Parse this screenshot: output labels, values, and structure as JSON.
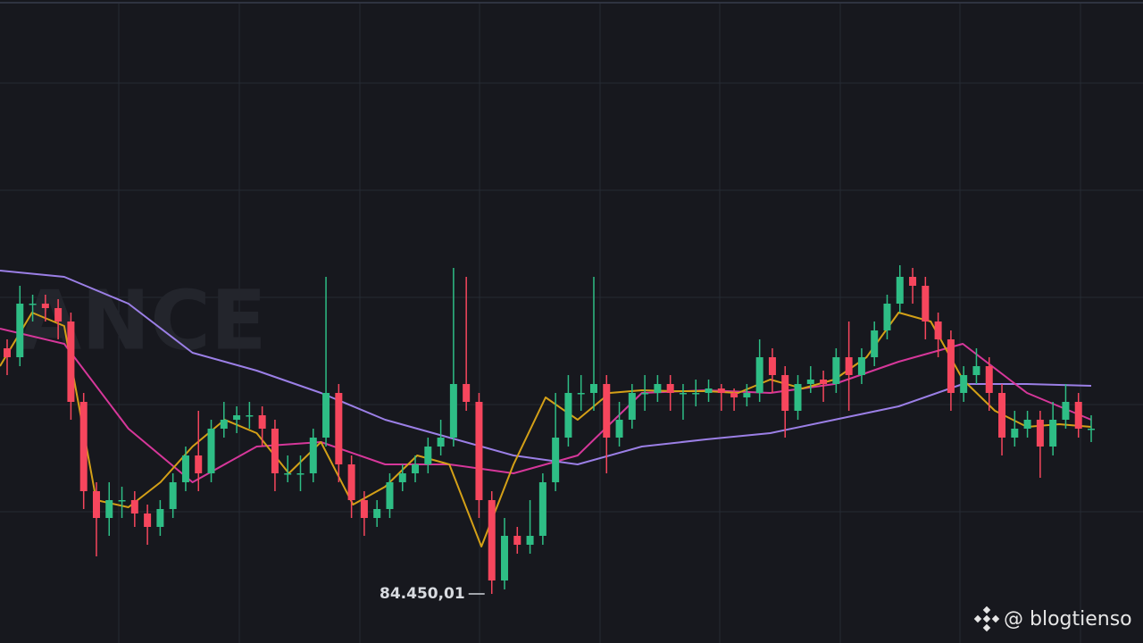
{
  "chart_data": {
    "type": "candlestick",
    "open": [
      87200,
      87100,
      87700,
      87700,
      87650,
      87500,
      86600,
      85600,
      85300,
      85500,
      85500,
      85350,
      85200,
      85400,
      85700,
      86000,
      85800,
      86300,
      86400,
      86450,
      86450,
      86300,
      85800,
      85800,
      85800,
      86200,
      86700,
      85900,
      85500,
      85300,
      85400,
      85700,
      85800,
      85900,
      86100,
      86200,
      86800,
      86600,
      85500,
      84600,
      85100,
      85000,
      85100,
      85700,
      86200,
      86700,
      86700,
      86800,
      86200,
      86400,
      86700,
      86700,
      86800,
      86700,
      86700,
      86700,
      86750,
      86700,
      86650,
      86700,
      87100,
      86900,
      86500,
      86800,
      86850,
      86800,
      87100,
      86900,
      87100,
      87400,
      87700,
      88000,
      87900,
      87500,
      87300,
      86700,
      86900,
      87000,
      86700,
      86200,
      86300,
      86400,
      86100,
      86400,
      86600,
      86300
    ],
    "high": [
      87300,
      87900,
      87800,
      87800,
      87750,
      87600,
      86700,
      85700,
      85700,
      85650,
      85600,
      85450,
      85500,
      85800,
      86100,
      86500,
      86400,
      86600,
      86550,
      86600,
      86550,
      86400,
      86000,
      86000,
      86300,
      88000,
      86800,
      86000,
      85600,
      85500,
      85800,
      85900,
      86000,
      86200,
      86400,
      88100,
      88000,
      86700,
      85600,
      85300,
      85200,
      85500,
      85800,
      86700,
      86900,
      86900,
      88000,
      86900,
      86600,
      86800,
      86900,
      86900,
      86900,
      86800,
      86850,
      86850,
      86800,
      86750,
      86800,
      87300,
      87200,
      87000,
      86900,
      87000,
      86950,
      87200,
      87500,
      87200,
      87500,
      87800,
      88130,
      88100,
      88000,
      87600,
      87400,
      87000,
      87200,
      87100,
      86800,
      86500,
      86500,
      86500,
      86600,
      86800,
      86700,
      86450
    ],
    "low": [
      86900,
      87000,
      87500,
      87500,
      87300,
      86400,
      85400,
      84870,
      85100,
      85300,
      85200,
      85000,
      85100,
      85300,
      85600,
      85600,
      85700,
      86200,
      86250,
      86300,
      86100,
      85600,
      85700,
      85600,
      85700,
      86100,
      85700,
      85300,
      85100,
      85200,
      85300,
      85600,
      85700,
      85800,
      86000,
      86100,
      86500,
      85300,
      84450.01,
      84500,
      84900,
      84900,
      85000,
      85600,
      86100,
      86500,
      86500,
      85800,
      86100,
      86300,
      86500,
      86600,
      86500,
      86400,
      86550,
      86600,
      86500,
      86500,
      86550,
      86600,
      86700,
      86200,
      86400,
      86700,
      86600,
      86700,
      86500,
      86800,
      87000,
      87300,
      87600,
      87700,
      87300,
      87100,
      86500,
      86600,
      86800,
      86500,
      86000,
      86100,
      86200,
      85750,
      86000,
      86300,
      86200,
      86150
    ],
    "close": [
      87100,
      87700,
      87700,
      87650,
      87500,
      86600,
      85600,
      85300,
      85500,
      85500,
      85350,
      85200,
      85400,
      85700,
      86000,
      85800,
      86300,
      86400,
      86450,
      86450,
      86300,
      85800,
      85800,
      85800,
      86200,
      86700,
      85900,
      85500,
      85300,
      85400,
      85700,
      85800,
      85900,
      86100,
      86200,
      86800,
      86600,
      85500,
      84600,
      85100,
      85000,
      85100,
      85700,
      86200,
      86700,
      86700,
      86800,
      86200,
      86400,
      86700,
      86700,
      86800,
      86700,
      86700,
      86700,
      86750,
      86700,
      86650,
      86700,
      87100,
      86900,
      86500,
      86800,
      86850,
      86800,
      87100,
      86900,
      87100,
      87400,
      87700,
      88000,
      87900,
      87500,
      87300,
      86700,
      86900,
      87000,
      86700,
      86200,
      86300,
      86400,
      86100,
      86400,
      86600,
      86300,
      86300
    ],
    "up_color": "#2ebd85",
    "down_color": "#f6465d",
    "lines": [
      {
        "color": "#9b7fe6",
        "values": [
          88070,
          88000,
          87700,
          87150,
          86950,
          86700,
          86400,
          86200,
          86000,
          85900,
          86100,
          86180,
          86250,
          86400,
          86550,
          86800,
          86800,
          86780
        ]
      },
      {
        "color": "#d6379a",
        "values": [
          87420,
          87250,
          86300,
          85700,
          86100,
          86150,
          85900,
          85900,
          85800,
          86000,
          86700,
          86730,
          86700,
          86800,
          87050,
          87250,
          86700,
          86400
        ]
      },
      {
        "color": "#d4a017",
        "values": [
          87000,
          87600,
          87450,
          85500,
          85420,
          85700,
          86100,
          86400,
          86250,
          85800,
          86150,
          85450,
          85650,
          86000,
          85900,
          84980,
          85900,
          86650,
          86400,
          86700,
          86730,
          86720,
          86720,
          86700,
          86850,
          86750,
          86850,
          87100,
          87600,
          87500,
          86850,
          86500,
          86320,
          86350,
          86320
        ]
      }
    ],
    "ylim": [
      83900,
      91100
    ],
    "yticks": [
      85370,
      86570,
      87770,
      88970,
      90170
    ],
    "grid": true,
    "annotation": "84.450,01",
    "watermark": "ANCE"
  },
  "footer": "@ blogtienso"
}
